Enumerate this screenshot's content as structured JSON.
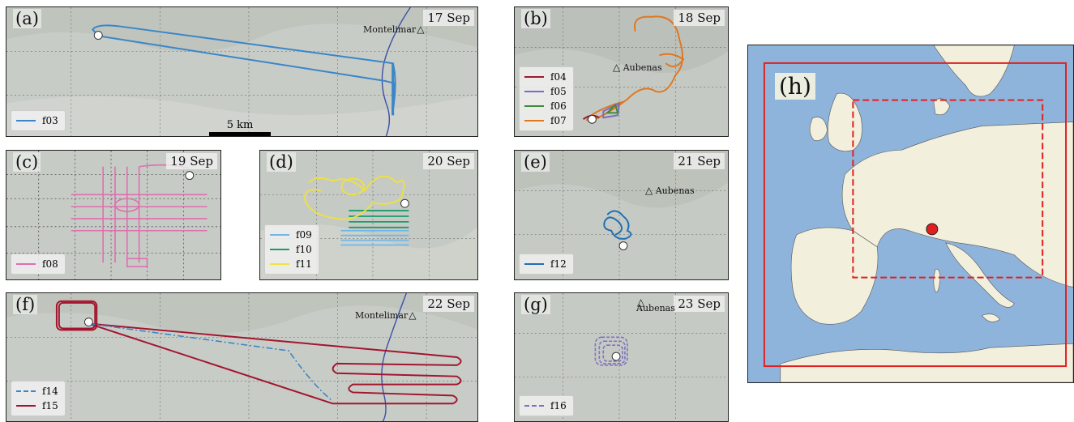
{
  "panels": {
    "a": {
      "label": "(a)",
      "date": "17 Sep",
      "legend": [
        {
          "name": "f03",
          "color": "#3a86c8",
          "dash": "solid"
        }
      ],
      "towns": [
        {
          "name": "Montelimar"
        }
      ],
      "scalebar": "5 km"
    },
    "b": {
      "label": "(b)",
      "date": "18 Sep",
      "legend": [
        {
          "name": "f04",
          "color": "#9b1b30",
          "dash": "solid"
        },
        {
          "name": "f05",
          "color": "#7a6cc0",
          "dash": "solid"
        },
        {
          "name": "f06",
          "color": "#3f8a3a",
          "dash": "solid"
        },
        {
          "name": "f07",
          "color": "#e0771f",
          "dash": "solid"
        }
      ],
      "towns": [
        {
          "name": "Aubenas"
        }
      ]
    },
    "c": {
      "label": "(c)",
      "date": "19 Sep",
      "legend": [
        {
          "name": "f08",
          "color": "#de6fae",
          "dash": "solid"
        }
      ]
    },
    "d": {
      "label": "(d)",
      "date": "20 Sep",
      "legend": [
        {
          "name": "f09",
          "color": "#6fb7e8",
          "dash": "solid"
        },
        {
          "name": "f10",
          "color": "#1e9a6a",
          "dash": "solid"
        },
        {
          "name": "f11",
          "color": "#f0e23a",
          "dash": "solid"
        }
      ]
    },
    "e": {
      "label": "(e)",
      "date": "21 Sep",
      "legend": [
        {
          "name": "f12",
          "color": "#1f6fb4",
          "dash": "solid"
        }
      ],
      "towns": [
        {
          "name": "Aubenas"
        }
      ]
    },
    "f": {
      "label": "(f)",
      "date": "22 Sep",
      "legend": [
        {
          "name": "f14",
          "color": "#3a86c8",
          "dash": "dashdot"
        },
        {
          "name": "f15",
          "color": "#a3152f",
          "dash": "solid"
        }
      ],
      "towns": [
        {
          "name": "Montelimar"
        }
      ]
    },
    "g": {
      "label": "(g)",
      "date": "23 Sep",
      "legend": [
        {
          "name": "f16",
          "color": "#7b72c4",
          "dash": "dashed"
        }
      ],
      "towns": [
        {
          "name": "Aubenas"
        }
      ]
    },
    "h": {
      "label": "(h)"
    }
  },
  "colors": {
    "sea": "#8fb4dc",
    "land": "#f2efdc",
    "terrain": "#c9cdc8",
    "domain": "#e02020"
  }
}
